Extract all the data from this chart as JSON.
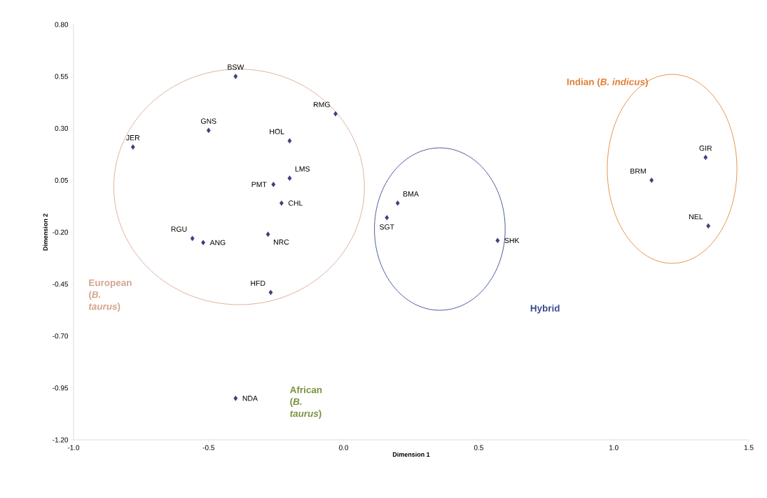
{
  "chart_data": {
    "type": "scatter",
    "xlabel": "Dimension 1",
    "ylabel": "Dimension 2",
    "x": [
      -0.4,
      -0.03,
      -0.5,
      -0.78,
      -0.2,
      -0.2,
      -0.26,
      -0.23,
      -0.56,
      -0.52,
      -0.28,
      -0.27,
      -0.4,
      0.2,
      0.16,
      0.57,
      1.14,
      1.34,
      1.35
    ],
    "values": [
      0.55,
      0.37,
      0.29,
      0.21,
      0.24,
      0.06,
      0.03,
      -0.06,
      -0.23,
      -0.25,
      -0.21,
      -0.49,
      -1.0,
      -0.06,
      -0.13,
      -0.24,
      0.05,
      0.16,
      -0.17
    ],
    "color": "#3f3d7e",
    "marker": "diamond",
    "grid": false,
    "xlim": [
      -1.0,
      1.5
    ],
    "ylim": [
      -1.2,
      0.8
    ],
    "xticks": [
      {
        "value": -1.0,
        "label": "-1.0"
      },
      {
        "value": -0.5,
        "label": "-0.5"
      },
      {
        "value": 0.0,
        "label": "0.0"
      },
      {
        "value": 0.5,
        "label": "0.5"
      },
      {
        "value": 1.0,
        "label": "1.0"
      },
      {
        "value": 1.5,
        "label": "1.5"
      }
    ],
    "yticks": [
      {
        "value": 0.8,
        "label": "0.80"
      },
      {
        "value": 0.55,
        "label": "0.55"
      },
      {
        "value": 0.3,
        "label": "0.30"
      },
      {
        "value": 0.05,
        "label": "0.05"
      },
      {
        "value": -0.2,
        "label": "-0.20"
      },
      {
        "value": -0.45,
        "label": "-0.45"
      },
      {
        "value": -0.7,
        "label": "-0.70"
      },
      {
        "value": -0.95,
        "label": "-0.95"
      },
      {
        "value": -1.2,
        "label": "-1.20"
      }
    ],
    "annotations": [
      {
        "text": "BSW",
        "x": -0.4,
        "y": 0.55
      },
      {
        "text": "RMG",
        "x": -0.03,
        "y": 0.37
      },
      {
        "text": "GNS",
        "x": -0.5,
        "y": 0.29
      },
      {
        "text": "JER",
        "x": -0.78,
        "y": 0.21
      },
      {
        "text": "HOL",
        "x": -0.2,
        "y": 0.24
      },
      {
        "text": "LMS",
        "x": -0.2,
        "y": 0.06
      },
      {
        "text": "PMT",
        "x": -0.26,
        "y": 0.03
      },
      {
        "text": "CHL",
        "x": -0.23,
        "y": -0.06
      },
      {
        "text": "RGU",
        "x": -0.56,
        "y": -0.23
      },
      {
        "text": "ANG",
        "x": -0.52,
        "y": -0.25
      },
      {
        "text": "NRC",
        "x": -0.28,
        "y": -0.21
      },
      {
        "text": "HFD",
        "x": -0.27,
        "y": -0.49
      },
      {
        "text": "NDA",
        "x": -0.4,
        "y": -1.0
      },
      {
        "text": "BMA",
        "x": 0.2,
        "y": -0.06
      },
      {
        "text": "SGT",
        "x": 0.16,
        "y": -0.13
      },
      {
        "text": "SHK",
        "x": 0.57,
        "y": -0.24
      },
      {
        "text": "BRM",
        "x": 1.14,
        "y": 0.05
      },
      {
        "text": "GIR",
        "x": 1.34,
        "y": 0.16
      },
      {
        "text": "NEL",
        "x": 1.35,
        "y": -0.17
      },
      "European (*B. taurus*)",
      "Hybrid",
      "Indian (*B. indicus*)",
      "African (*B. taurus*)"
    ]
  }
}
